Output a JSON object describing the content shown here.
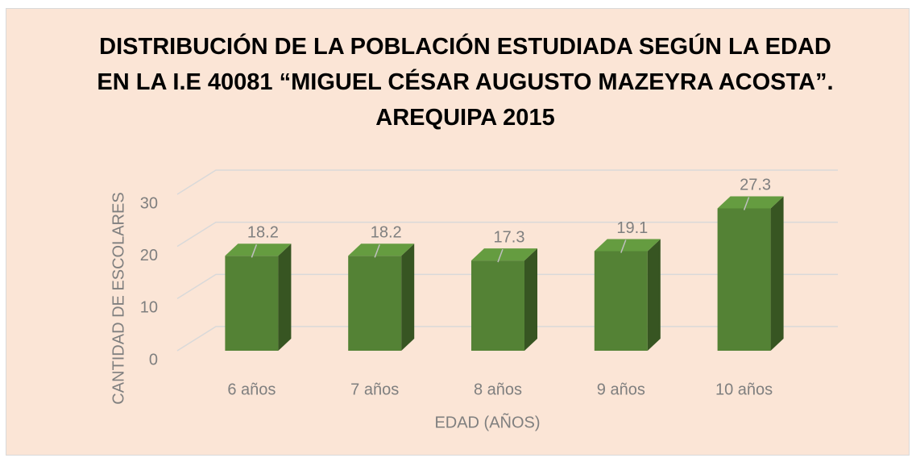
{
  "chart_data": {
    "type": "bar3d",
    "title": "DISTRIBUCIÓN  DE LA POBLACIÓN ESTUDIADA SEGÚN LA EDAD EN LA I.E 40081 “MIGUEL CÉSAR AUGUSTO MAZEYRA ACOSTA”. AREQUIPA 2015",
    "x_label": "EDAD (AÑOS)",
    "y_label": "CANTIDAD DE ESCOLARES",
    "categories": [
      "6 años",
      "7 años",
      "8 años",
      "9 años",
      "10 años"
    ],
    "values": [
      18.2,
      18.2,
      17.3,
      19.1,
      27.3
    ],
    "color": "#548235",
    "ylim": [
      0,
      30
    ],
    "yticks": [
      0,
      10,
      20,
      30
    ],
    "grid": true
  }
}
